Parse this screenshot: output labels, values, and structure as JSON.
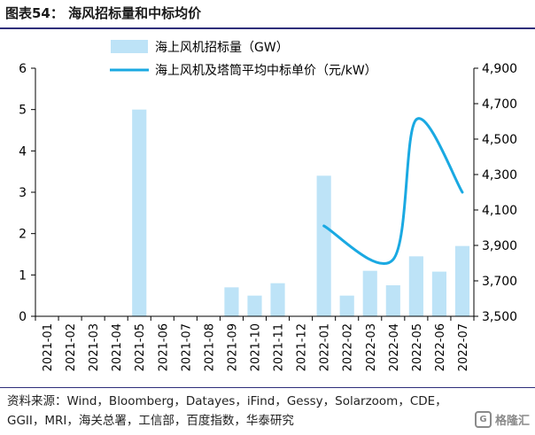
{
  "header": {
    "title": "图表54：  海风招标量和中标均价"
  },
  "footer": {
    "source": "资料来源：Wind，Bloomberg，Datayes，iFind，Gessy，Solarzoom，CDE，GGII，MRI，海关总署，工信部，百度指数，华泰研究",
    "watermark": "格隆汇",
    "watermark_icon": "g-logo-icon"
  },
  "colors": {
    "bar": "#bde3f7",
    "line": "#1aa9e2",
    "axis": "#000000"
  },
  "chart_data": {
    "type": "bar",
    "title": "",
    "categories": [
      "2021-01",
      "2021-02",
      "2021-03",
      "2021-04",
      "2021-05",
      "2021-06",
      "2021-07",
      "2021-08",
      "2021-09",
      "2021-10",
      "2021-11",
      "2021-12",
      "2022-01",
      "2022-02",
      "2022-03",
      "2022-04",
      "2022-05",
      "2022-06",
      "2022-07"
    ],
    "series": [
      {
        "name": "海上风机招标量（GW）",
        "type": "bar",
        "axis": "left",
        "values": [
          0,
          0,
          0,
          0,
          5.0,
          0,
          0,
          0,
          0.7,
          0.5,
          0.8,
          0,
          3.4,
          0.5,
          1.1,
          0.75,
          1.45,
          1.08,
          1.7
        ]
      },
      {
        "name": "海上风机及塔筒平均中标单价（元/kW）",
        "type": "line",
        "axis": "right",
        "smooth": true,
        "values": [
          null,
          null,
          null,
          null,
          null,
          null,
          null,
          null,
          null,
          null,
          null,
          null,
          4010,
          null,
          null,
          3820,
          4610,
          null,
          4200
        ]
      }
    ],
    "ylim_left": [
      0,
      6
    ],
    "yticks_left": [
      "0",
      "1",
      "2",
      "3",
      "4",
      "5",
      "6"
    ],
    "ylim_right": [
      3500,
      4900
    ],
    "yticks_right": [
      "3,500",
      "3,700",
      "3,900",
      "4,100",
      "4,300",
      "4,500",
      "4,700",
      "4,900"
    ],
    "xlabel": "",
    "ylabel": "",
    "grid": false,
    "legend_position": "top"
  }
}
